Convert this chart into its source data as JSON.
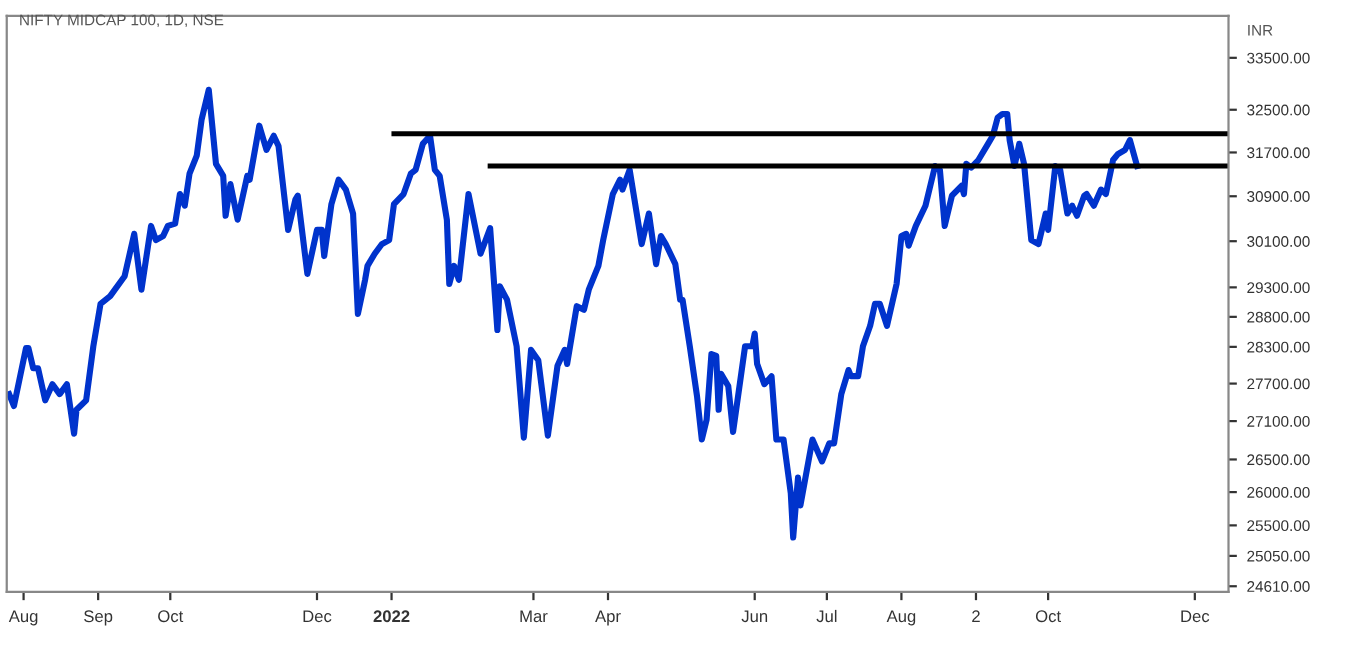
{
  "chart_data": {
    "type": "line",
    "title": "NIFTY MIDCAP 100, 1D, NSE",
    "ylabel": "INR",
    "log": "y",
    "grid": false,
    "legend": false,
    "marker": "none",
    "line_style": "solid",
    "xlim": [
      "2021-07-25",
      "2022-12-15"
    ],
    "ylim": [
      24530,
      34330
    ],
    "xticks": [
      {
        "value": "2021-08-01",
        "label": "Aug"
      },
      {
        "value": "2021-09-01",
        "label": "Sep"
      },
      {
        "value": "2021-10-01",
        "label": "Oct"
      },
      {
        "value": "2021-12-01",
        "label": "Dec"
      },
      {
        "value": "2022-01-01",
        "label": "2022"
      },
      {
        "value": "2022-03-01",
        "label": "Mar"
      },
      {
        "value": "2022-04-01",
        "label": "Apr"
      },
      {
        "value": "2022-06-01",
        "label": "Jun"
      },
      {
        "value": "2022-07-01",
        "label": "Jul"
      },
      {
        "value": "2022-08-01",
        "label": "Aug"
      },
      {
        "value": "2022-09-01",
        "label": "2"
      },
      {
        "value": "2022-10-01",
        "label": "Oct"
      },
      {
        "value": "2022-12-01",
        "label": "Dec"
      }
    ],
    "yticks": [
      {
        "value": 33500,
        "label": "33500.00"
      },
      {
        "value": 32500,
        "label": "32500.00"
      },
      {
        "value": 31700,
        "label": "31700.00"
      },
      {
        "value": 30900,
        "label": "30900.00"
      },
      {
        "value": 30100,
        "label": "30100.00"
      },
      {
        "value": 29300,
        "label": "29300.00"
      },
      {
        "value": 28800,
        "label": "28800.00"
      },
      {
        "value": 28300,
        "label": "28300.00"
      },
      {
        "value": 27700,
        "label": "27700.00"
      },
      {
        "value": 27100,
        "label": "27100.00"
      },
      {
        "value": 26500,
        "label": "26500.00"
      },
      {
        "value": 26000,
        "label": "26000.00"
      },
      {
        "value": 25500,
        "label": "25500.00"
      },
      {
        "value": 25050,
        "label": "25050.00"
      },
      {
        "value": 24610,
        "label": "24610.00"
      }
    ],
    "series": [
      {
        "color": "#0033cc",
        "x": [
          "2021-07-26",
          "2021-07-28",
          "2021-08-02",
          "2021-08-03",
          "2021-08-05",
          "2021-08-07",
          "2021-08-10",
          "2021-08-13",
          "2021-08-16",
          "2021-08-19",
          "2021-08-22",
          "2021-08-23",
          "2021-08-27",
          "2021-08-30",
          "2021-09-02",
          "2021-09-06",
          "2021-09-12",
          "2021-09-16",
          "2021-09-19",
          "2021-09-23",
          "2021-09-25",
          "2021-09-28",
          "2021-09-30",
          "2021-10-03",
          "2021-10-05",
          "2021-10-07",
          "2021-10-09",
          "2021-10-12",
          "2021-10-14",
          "2021-10-17",
          "2021-10-20",
          "2021-10-23",
          "2021-10-24",
          "2021-10-26",
          "2021-10-29",
          "2021-11-02",
          "2021-11-03",
          "2021-11-07",
          "2021-11-10",
          "2021-11-13",
          "2021-11-15",
          "2021-11-19",
          "2021-11-22",
          "2021-11-23",
          "2021-11-27",
          "2021-12-01",
          "2021-12-03",
          "2021-12-04",
          "2021-12-07",
          "2021-12-10",
          "2021-12-13",
          "2021-12-16",
          "2021-12-18",
          "2021-12-21",
          "2021-12-22",
          "2021-12-25",
          "2021-12-28",
          "2021-12-31",
          "2022-01-02",
          "2022-01-06",
          "2022-01-09",
          "2022-01-11",
          "2022-01-14",
          "2022-01-17",
          "2022-01-19",
          "2022-01-21",
          "2022-01-24",
          "2022-01-25",
          "2022-01-27",
          "2022-01-29",
          "2022-02-02",
          "2022-02-07",
          "2022-02-11",
          "2022-02-14",
          "2022-02-15",
          "2022-02-18",
          "2022-02-22",
          "2022-02-25",
          "2022-02-28",
          "2022-03-03",
          "2022-03-07",
          "2022-03-11",
          "2022-03-14",
          "2022-03-15",
          "2022-03-19",
          "2022-03-22",
          "2022-03-24",
          "2022-03-28",
          "2022-03-30",
          "2022-04-03",
          "2022-04-06",
          "2022-04-07",
          "2022-04-10",
          "2022-04-12",
          "2022-04-15",
          "2022-04-18",
          "2022-04-21",
          "2022-04-23",
          "2022-04-25",
          "2022-04-29",
          "2022-05-01",
          "2022-05-02",
          "2022-05-05",
          "2022-05-08",
          "2022-05-10",
          "2022-05-12",
          "2022-05-14",
          "2022-05-16",
          "2022-05-17",
          "2022-05-18",
          "2022-05-21",
          "2022-05-23",
          "2022-05-28",
          "2022-05-31",
          "2022-06-01",
          "2022-06-02",
          "2022-06-05",
          "2022-06-08",
          "2022-06-10",
          "2022-06-13",
          "2022-06-16",
          "2022-06-17",
          "2022-06-19",
          "2022-06-20",
          "2022-06-25",
          "2022-06-29",
          "2022-07-02",
          "2022-07-04",
          "2022-07-07",
          "2022-07-10",
          "2022-07-11",
          "2022-07-14",
          "2022-07-16",
          "2022-07-19",
          "2022-07-21",
          "2022-07-23",
          "2022-07-26",
          "2022-07-30",
          "2022-08-01",
          "2022-08-03",
          "2022-08-04",
          "2022-08-07",
          "2022-08-11",
          "2022-08-14",
          "2022-08-15",
          "2022-08-17",
          "2022-08-19",
          "2022-08-22",
          "2022-08-26",
          "2022-08-27",
          "2022-08-28",
          "2022-08-30",
          "2022-09-02",
          "2022-09-06",
          "2022-09-08",
          "2022-09-10",
          "2022-09-12",
          "2022-09-14",
          "2022-09-15",
          "2022-09-17",
          "2022-09-19",
          "2022-09-21",
          "2022-09-24",
          "2022-09-27",
          "2022-09-30",
          "2022-10-01",
          "2022-10-04",
          "2022-10-06",
          "2022-10-09",
          "2022-10-11",
          "2022-10-13",
          "2022-10-16",
          "2022-10-17",
          "2022-10-20",
          "2022-10-23",
          "2022-10-25",
          "2022-10-28",
          "2022-10-30",
          "2022-11-02",
          "2022-11-04",
          "2022-11-07"
        ],
        "values": [
          27530,
          27340,
          28280,
          28280,
          27950,
          27950,
          27430,
          27690,
          27530,
          27690,
          26900,
          27280,
          27430,
          28310,
          29020,
          29150,
          29490,
          30230,
          29260,
          30370,
          30120,
          30190,
          30370,
          30410,
          30940,
          30730,
          31310,
          31640,
          32310,
          32880,
          31490,
          31270,
          30550,
          31120,
          30480,
          31270,
          31200,
          32200,
          31750,
          32010,
          31820,
          30300,
          30840,
          30910,
          29530,
          30300,
          30300,
          29840,
          30760,
          31200,
          31020,
          30590,
          28850,
          29430,
          29670,
          29880,
          30050,
          30120,
          30760,
          30940,
          31310,
          31380,
          31860,
          32010,
          31380,
          31270,
          30480,
          29360,
          29670,
          29430,
          30940,
          29880,
          30330,
          28580,
          29320,
          29090,
          28310,
          26840,
          28250,
          28080,
          26870,
          27990,
          28250,
          28020,
          28980,
          28920,
          29260,
          29670,
          30120,
          30940,
          31200,
          31020,
          31380,
          30840,
          30050,
          30590,
          29700,
          30190,
          30050,
          29700,
          29090,
          29090,
          28310,
          27500,
          26810,
          27120,
          28180,
          28150,
          27280,
          27860,
          27660,
          26930,
          28310,
          28310,
          28520,
          28020,
          27690,
          27820,
          26810,
          26810,
          25980,
          25320,
          26220,
          25800,
          26810,
          26470,
          26750,
          26750,
          27530,
          27920,
          27820,
          27820,
          28310,
          28650,
          29020,
          29020,
          28650,
          29360,
          30190,
          30230,
          30020,
          30370,
          30730,
          31270,
          31450,
          31380,
          30370,
          30910,
          31090,
          30940,
          31490,
          31420,
          31560,
          31860,
          32010,
          32350,
          32420,
          32420,
          31930,
          31450,
          31860,
          31490,
          30120,
          30050,
          30590,
          30300,
          31450,
          31380,
          30590,
          30730,
          30550,
          30910,
          30940,
          30730,
          31020,
          30940,
          31560,
          31670,
          31750,
          31930,
          31450
        ]
      },
      {
        "color": "#000000",
        "x": [
          "2022-01-02",
          "2022-12-15"
        ],
        "values": [
          32050,
          32050
        ]
      },
      {
        "color": "#000000",
        "x": [
          "2022-02-11",
          "2022-12-15"
        ],
        "values": [
          31450,
          31450
        ]
      }
    ]
  }
}
